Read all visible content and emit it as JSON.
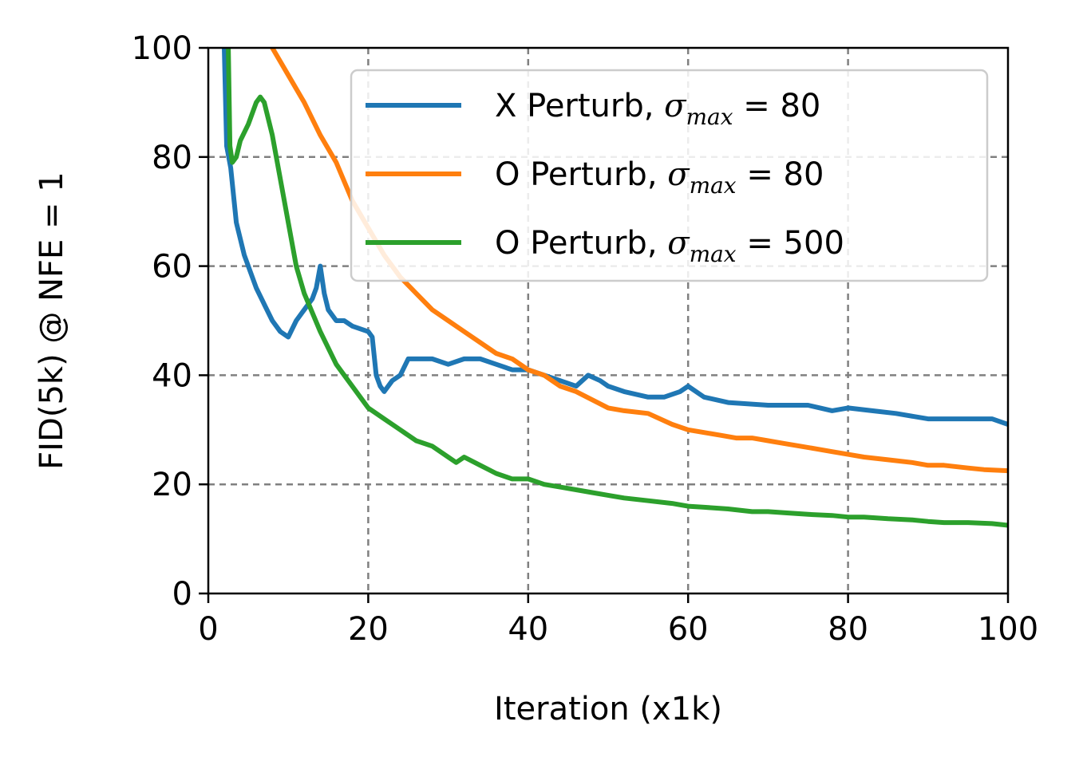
{
  "chart_data": {
    "type": "line",
    "title": "",
    "xlabel": "Iteration (x1k)",
    "ylabel": "FID(5k) @ NFE = 1",
    "xlim": [
      0,
      100
    ],
    "ylim": [
      0,
      100
    ],
    "xticks": [
      "0",
      "20",
      "40",
      "60",
      "80",
      "100"
    ],
    "yticks": [
      "0",
      "20",
      "40",
      "60",
      "80",
      "100"
    ],
    "grid": true,
    "legend_position": "upper-right",
    "series": [
      {
        "name": "X Perturb, σmax = 80",
        "label_prefix": "X Perturb, ",
        "sigma": "σ",
        "subscript": "max",
        "label_suffix": " = 80",
        "color": "#1f77b4",
        "x": [
          2,
          2.3,
          2.8,
          3.5,
          4.5,
          6,
          7,
          8,
          9,
          10,
          11,
          12,
          13,
          13.5,
          14,
          14.5,
          15,
          16,
          17,
          18,
          20,
          20.5,
          21,
          21.5,
          22,
          23,
          24,
          25,
          26,
          27,
          28,
          30,
          32,
          34,
          36,
          38,
          40,
          42,
          44,
          46,
          47.5,
          49,
          50,
          52,
          55,
          57,
          59,
          60,
          62,
          65,
          70,
          75,
          78,
          80,
          83,
          86,
          90,
          93,
          95,
          98,
          100
        ],
        "y": [
          100,
          82,
          78,
          68,
          62,
          56,
          53,
          50,
          48,
          47,
          50,
          52,
          54,
          56,
          60,
          55,
          52,
          50,
          50,
          49,
          48,
          47,
          40,
          38,
          37,
          39,
          40,
          43,
          43,
          43,
          43,
          42,
          43,
          43,
          42,
          41,
          41,
          40,
          39,
          38,
          40,
          39,
          38,
          37,
          36,
          36,
          37,
          38,
          36,
          35,
          34.5,
          34.5,
          33.5,
          34,
          33.5,
          33,
          32,
          32,
          32,
          32,
          31
        ]
      },
      {
        "name": "O Perturb, σmax = 80",
        "label_prefix": "O Perturb, ",
        "sigma": "σ",
        "subscript": "max",
        "label_suffix": " = 80",
        "color": "#ff7f0e",
        "x": [
          8,
          10,
          12,
          14,
          16,
          18,
          20,
          22,
          24,
          26,
          28,
          30,
          32,
          34,
          36,
          38,
          40,
          42,
          44,
          46,
          48,
          50,
          52,
          55,
          58,
          60,
          62,
          64,
          66,
          68,
          70,
          72,
          74,
          76,
          78,
          80,
          82,
          85,
          88,
          90,
          92,
          95,
          97,
          100
        ],
        "y": [
          100,
          95,
          90,
          84,
          79,
          72,
          67,
          62,
          58,
          55,
          52,
          50,
          48,
          46,
          44,
          43,
          41,
          40,
          38,
          37,
          35.5,
          34,
          33.5,
          33,
          31,
          30,
          29.5,
          29,
          28.5,
          28.5,
          28,
          27.5,
          27,
          26.5,
          26,
          25.5,
          25,
          24.5,
          24,
          23.5,
          23.5,
          23,
          22.7,
          22.5
        ]
      },
      {
        "name": "O Perturb, σmax = 500",
        "label_prefix": "O Perturb, ",
        "sigma": "σ",
        "subscript": "max",
        "label_suffix": " = 500",
        "color": "#2ca02c",
        "x": [
          2.5,
          2.7,
          3,
          3.5,
          4,
          5,
          6,
          6.5,
          7,
          8,
          9,
          10,
          11,
          12,
          14,
          16,
          18,
          20,
          22,
          24,
          26,
          28,
          30,
          31,
          32,
          34,
          36,
          38,
          40,
          42,
          44,
          46,
          48,
          50,
          52,
          55,
          58,
          60,
          62,
          65,
          68,
          70,
          72,
          75,
          78,
          80,
          82,
          85,
          88,
          90,
          92,
          95,
          98,
          100
        ],
        "y": [
          100,
          82,
          79,
          80,
          83,
          86,
          90,
          91,
          90,
          84,
          76,
          68,
          60,
          55,
          48,
          42,
          38,
          34,
          32,
          30,
          28,
          27,
          25,
          24,
          25,
          23.5,
          22,
          21,
          21,
          20,
          19.5,
          19,
          18.5,
          18,
          17.5,
          17,
          16.5,
          16,
          15.8,
          15.5,
          15,
          15,
          14.8,
          14.5,
          14.3,
          14,
          14,
          13.7,
          13.5,
          13.2,
          13,
          13,
          12.8,
          12.5
        ]
      }
    ]
  }
}
